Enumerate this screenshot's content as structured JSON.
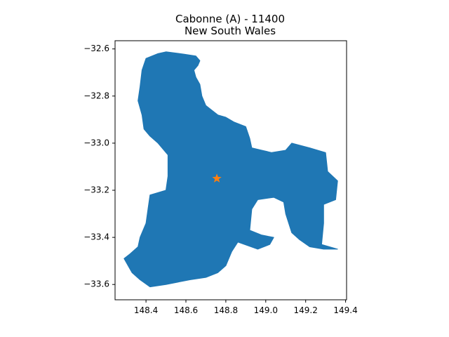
{
  "title": {
    "line1": "Cabonne (A) - 11400",
    "line2": "New South Wales"
  },
  "colors": {
    "region_fill": "#1f77b4",
    "marker_fill": "#ff7f0e",
    "axes": "#000000",
    "background": "#ffffff"
  },
  "chart_data": {
    "type": "map",
    "region_name": "Cabonne (A) - 11400",
    "state": "New South Wales",
    "xlim": [
      148.245,
      149.405
    ],
    "ylim": [
      -33.665,
      -32.565
    ],
    "x_ticks": [
      148.4,
      148.6,
      148.8,
      149.0,
      149.2,
      149.4
    ],
    "x_tick_labels": [
      "148.4",
      "148.6",
      "148.8",
      "149.0",
      "149.2",
      "149.4"
    ],
    "y_ticks": [
      -32.6,
      -32.8,
      -33.0,
      -33.2,
      -33.4,
      -33.6
    ],
    "y_tick_labels": [
      "−32.6",
      "−32.8",
      "−33.0",
      "−33.2",
      "−33.4",
      "−33.6"
    ],
    "grid": false,
    "legend": "none",
    "marker": {
      "shape": "star-icon",
      "lon": 148.755,
      "lat": -33.15
    },
    "outline": [
      [
        148.5,
        -32.612
      ],
      [
        148.59,
        -32.622
      ],
      [
        148.65,
        -32.63
      ],
      [
        148.67,
        -32.65
      ],
      [
        148.66,
        -32.67
      ],
      [
        148.64,
        -32.69
      ],
      [
        148.65,
        -32.72
      ],
      [
        148.67,
        -32.75
      ],
      [
        148.68,
        -32.8
      ],
      [
        148.7,
        -32.84
      ],
      [
        148.73,
        -32.86
      ],
      [
        148.76,
        -32.88
      ],
      [
        148.8,
        -32.89
      ],
      [
        148.84,
        -32.91
      ],
      [
        148.9,
        -32.93
      ],
      [
        148.92,
        -32.98
      ],
      [
        148.93,
        -33.02
      ],
      [
        148.98,
        -33.03
      ],
      [
        149.03,
        -33.04
      ],
      [
        149.1,
        -33.03
      ],
      [
        149.13,
        -33.0
      ],
      [
        149.22,
        -33.02
      ],
      [
        149.3,
        -33.04
      ],
      [
        149.31,
        -33.12
      ],
      [
        149.36,
        -33.16
      ],
      [
        149.35,
        -33.24
      ],
      [
        149.29,
        -33.26
      ],
      [
        149.29,
        -33.34
      ],
      [
        149.28,
        -33.43
      ],
      [
        149.36,
        -33.45
      ],
      [
        149.29,
        -33.45
      ],
      [
        149.22,
        -33.44
      ],
      [
        149.17,
        -33.41
      ],
      [
        149.13,
        -33.38
      ],
      [
        149.1,
        -33.3
      ],
      [
        149.09,
        -33.25
      ],
      [
        149.04,
        -33.23
      ],
      [
        148.96,
        -33.24
      ],
      [
        148.93,
        -33.28
      ],
      [
        148.92,
        -33.37
      ],
      [
        148.98,
        -33.39
      ],
      [
        149.04,
        -33.4
      ],
      [
        149.02,
        -33.43
      ],
      [
        148.96,
        -33.45
      ],
      [
        148.86,
        -33.42
      ],
      [
        148.83,
        -33.46
      ],
      [
        148.8,
        -33.52
      ],
      [
        148.76,
        -33.55
      ],
      [
        148.7,
        -33.57
      ],
      [
        148.62,
        -33.58
      ],
      [
        148.5,
        -33.6
      ],
      [
        148.42,
        -33.61
      ],
      [
        148.37,
        -33.58
      ],
      [
        148.33,
        -33.55
      ],
      [
        148.29,
        -33.49
      ],
      [
        148.32,
        -33.47
      ],
      [
        148.36,
        -33.44
      ],
      [
        148.37,
        -33.4
      ],
      [
        148.4,
        -33.34
      ],
      [
        148.41,
        -33.28
      ],
      [
        148.42,
        -33.22
      ],
      [
        148.46,
        -33.21
      ],
      [
        148.5,
        -33.2
      ],
      [
        148.51,
        -33.14
      ],
      [
        148.51,
        -33.05
      ],
      [
        148.46,
        -33.0
      ],
      [
        148.42,
        -32.97
      ],
      [
        148.39,
        -32.94
      ],
      [
        148.38,
        -32.88
      ],
      [
        148.36,
        -32.82
      ],
      [
        148.37,
        -32.76
      ],
      [
        148.38,
        -32.69
      ],
      [
        148.4,
        -32.64
      ],
      [
        148.46,
        -32.62
      ]
    ]
  }
}
